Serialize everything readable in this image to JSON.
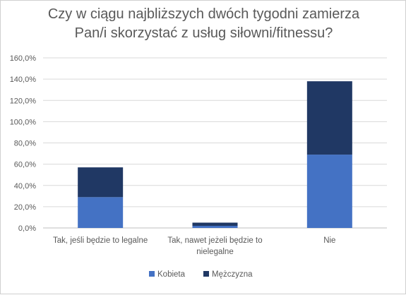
{
  "chart_data": {
    "type": "bar",
    "stacked": true,
    "title_lines": [
      "Czy w ciągu najbliższych dwóch tygodni zamierza",
      "Pan/i skorzystać z usług siłowni/fitnessu?"
    ],
    "categories": [
      [
        "Tak, jeśli będzie to legalne"
      ],
      [
        "Tak, nawet jeżeli będzie to",
        "nielegalne"
      ],
      [
        "Nie"
      ]
    ],
    "series": [
      {
        "name": "Kobieta",
        "color": "#4472c4",
        "values": [
          29.0,
          2.0,
          69.0
        ]
      },
      {
        "name": "Mężczyzna",
        "color": "#203864",
        "values": [
          28.0,
          3.0,
          69.0
        ]
      }
    ],
    "ylim": [
      0,
      160
    ],
    "yticks": [
      "0,0%",
      "20,0%",
      "40,0%",
      "60,0%",
      "80,0%",
      "100,0%",
      "120,0%",
      "140,0%",
      "160,0%"
    ],
    "grid": true,
    "legend_position": "bottom"
  }
}
